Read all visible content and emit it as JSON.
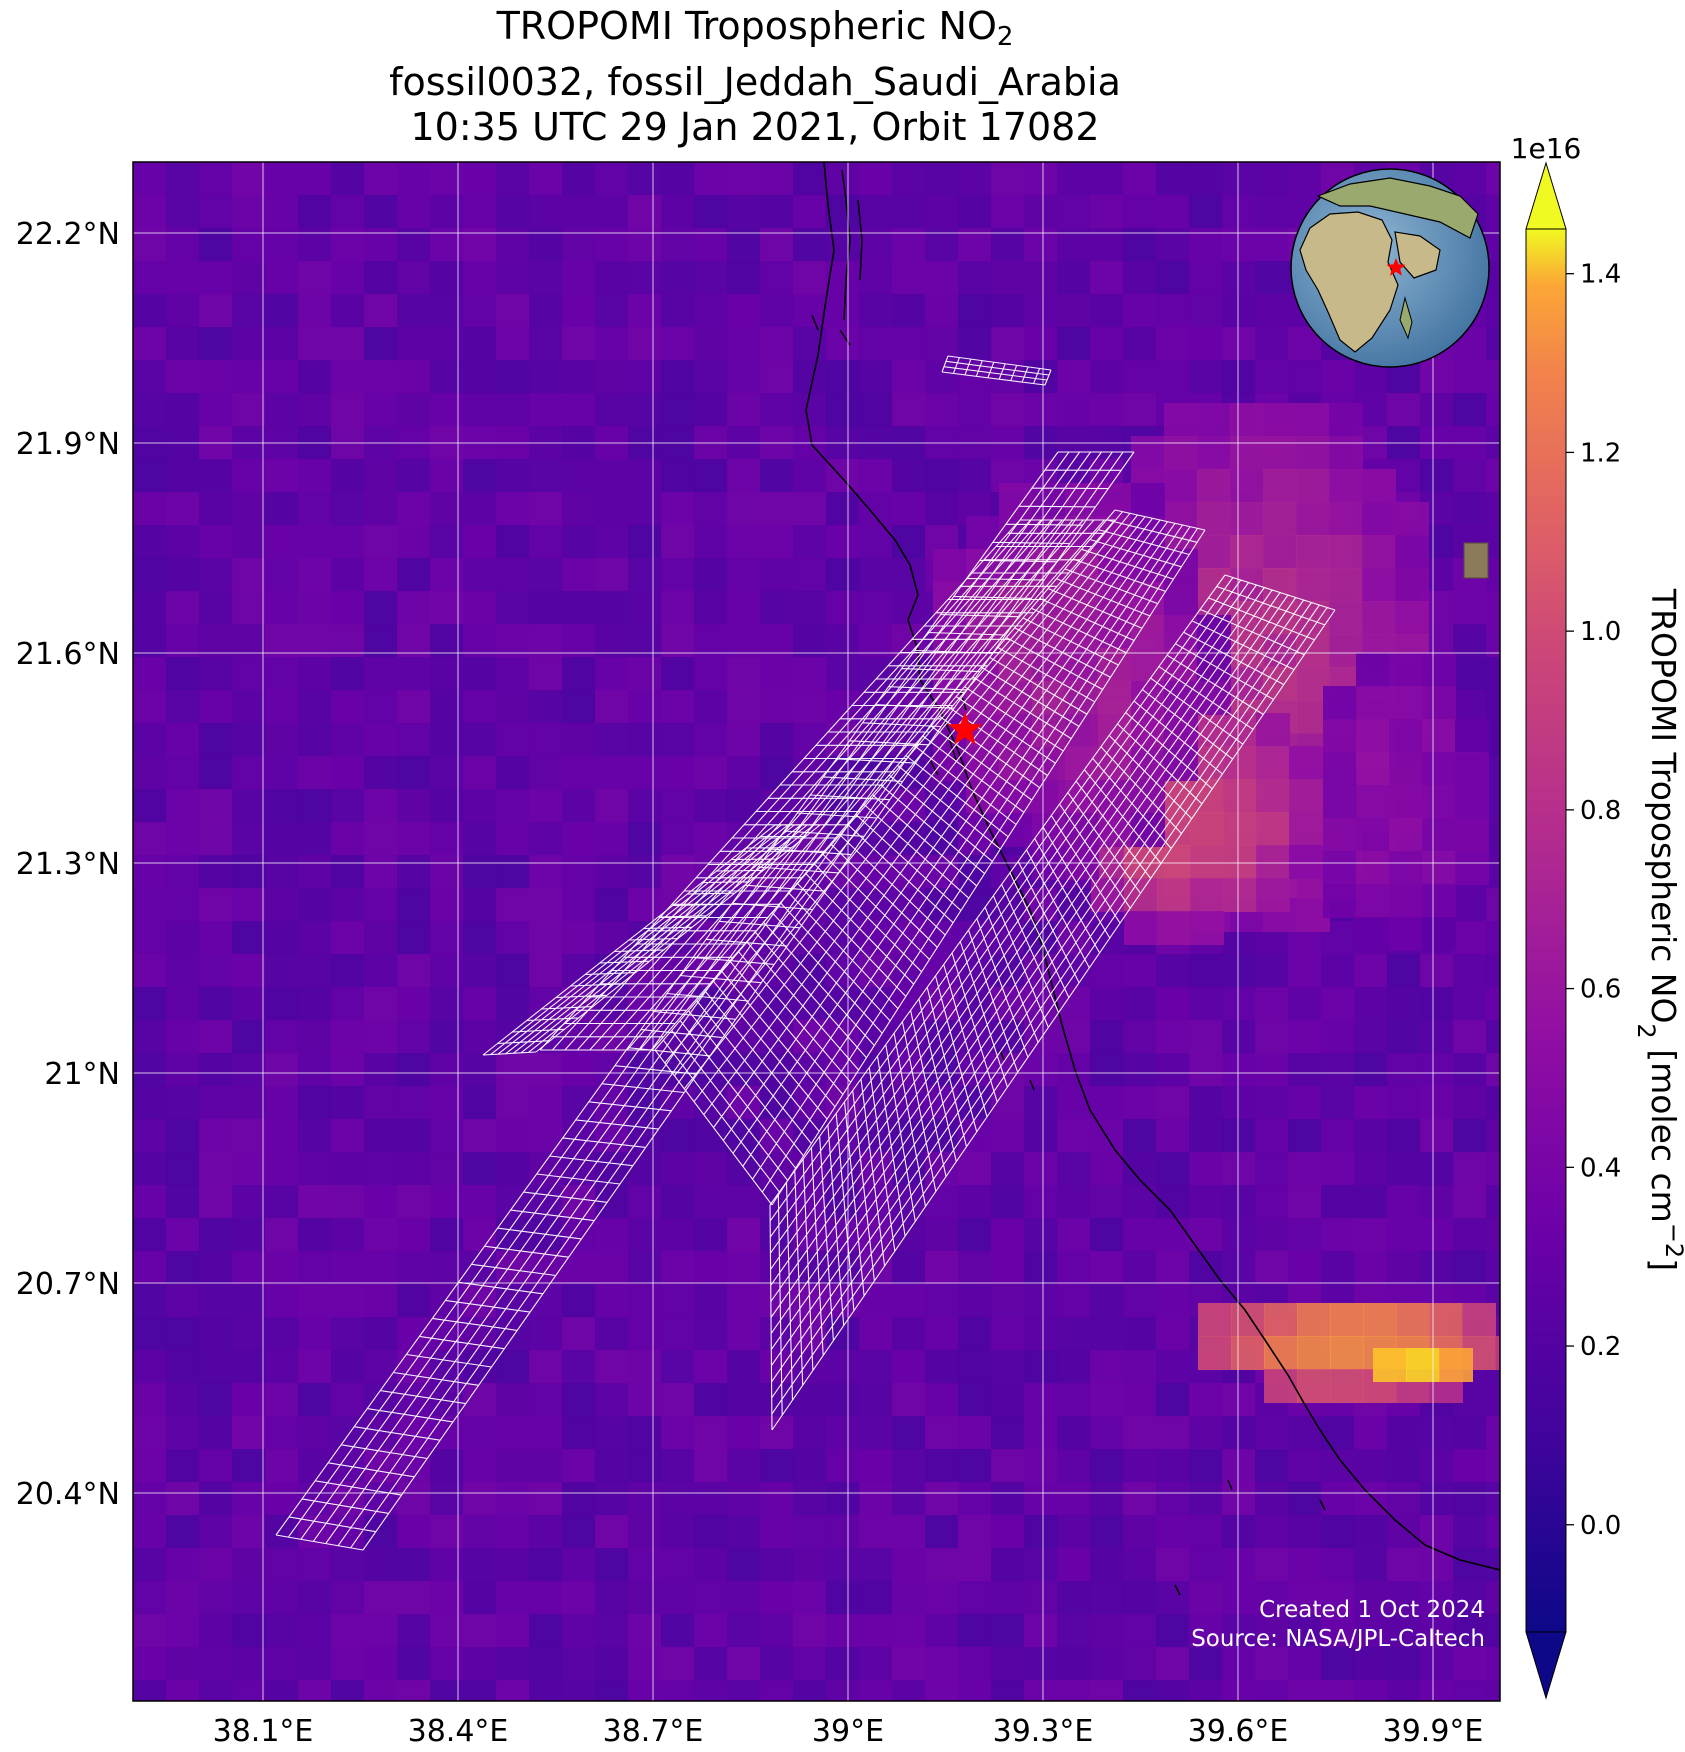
{
  "title": {
    "line1_main": "TROPOMI Tropospheric NO",
    "line1_sub": "2",
    "line2": "fossil0032, fossil_Jeddah_Saudi_Arabia",
    "line3": "10:35 UTC 29 Jan 2021, Orbit 17082"
  },
  "map": {
    "lon_ticks": [
      {
        "value": 38.1,
        "label": "38.1°E"
      },
      {
        "value": 38.4,
        "label": "38.4°E"
      },
      {
        "value": 38.7,
        "label": "38.7°E"
      },
      {
        "value": 39.0,
        "label": "39°E"
      },
      {
        "value": 39.3,
        "label": "39.3°E"
      },
      {
        "value": 39.6,
        "label": "39.6°E"
      },
      {
        "value": 39.9,
        "label": "39.9°E"
      }
    ],
    "lat_ticks": [
      {
        "value": 22.2,
        "label": "22.2°N"
      },
      {
        "value": 21.9,
        "label": "21.9°N"
      },
      {
        "value": 21.6,
        "label": "21.6°N"
      },
      {
        "value": 21.3,
        "label": "21.3°N"
      },
      {
        "value": 21.0,
        "label": "21°N"
      },
      {
        "value": 20.7,
        "label": "20.7°N"
      },
      {
        "value": 20.4,
        "label": "20.4°N"
      }
    ],
    "site": {
      "name": "fossil_Jeddah_Saudi_Arabia",
      "lon": 39.18,
      "lat": 21.49,
      "marker_color": "#ff0000"
    },
    "credit_line1": "Created 1 Oct 2024",
    "credit_line2": "Source: NASA/JPL-Caltech",
    "colormap": "plasma",
    "gridlines": true
  },
  "colorbar": {
    "multiplier": "1e16",
    "ticks": [
      "1.4",
      "1.2",
      "1.0",
      "0.8",
      "0.6",
      "0.4",
      "0.2",
      "0.0"
    ],
    "tick_values": [
      1.4,
      1.2,
      1.0,
      0.8,
      0.6,
      0.4,
      0.2,
      0.0
    ],
    "range": [
      -0.12,
      1.45
    ],
    "extend": "both",
    "label_main": "TROPOMI Tropospheric NO",
    "label_sub": "2",
    "label_units": " [molec cm",
    "label_sup": "−2",
    "label_close": "]"
  },
  "inset": {
    "type": "globe",
    "marker_color": "#ff0000"
  }
}
